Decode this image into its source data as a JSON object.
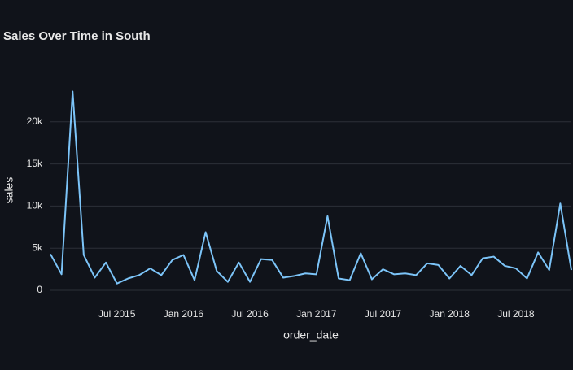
{
  "chart_data": {
    "type": "line",
    "title": "Sales Over Time in South",
    "x_label": "order_date",
    "y_label": "sales",
    "x": [
      "2015-01",
      "2015-02",
      "2015-03",
      "2015-04",
      "2015-05",
      "2015-06",
      "2015-07",
      "2015-08",
      "2015-09",
      "2015-10",
      "2015-11",
      "2015-12",
      "2016-01",
      "2016-02",
      "2016-03",
      "2016-04",
      "2016-05",
      "2016-06",
      "2016-07",
      "2016-08",
      "2016-09",
      "2016-10",
      "2016-11",
      "2016-12",
      "2017-01",
      "2017-02",
      "2017-03",
      "2017-04",
      "2017-05",
      "2017-06",
      "2017-07",
      "2017-08",
      "2017-09",
      "2017-10",
      "2017-11",
      "2017-12",
      "2018-01",
      "2018-02",
      "2018-03",
      "2018-04",
      "2018-05",
      "2018-06",
      "2018-07",
      "2018-08",
      "2018-09",
      "2018-10",
      "2018-11",
      "2018-12"
    ],
    "series": [
      {
        "name": "sales",
        "color": "#7cc4f8",
        "values": [
          4300,
          1900,
          23600,
          4200,
          1500,
          3300,
          800,
          1400,
          1800,
          2600,
          1800,
          3600,
          4200,
          1200,
          6900,
          2300,
          1000,
          3300,
          1000,
          3700,
          3600,
          1500,
          1700,
          2000,
          1900,
          8800,
          1400,
          1200,
          4400,
          1300,
          2500,
          1900,
          2000,
          1800,
          3200,
          3000,
          1400,
          2900,
          1800,
          3800,
          4000,
          2900,
          2600,
          1400,
          4500,
          2400,
          10300,
          2400
        ]
      }
    ],
    "xlim": [
      "2015-01",
      "2018-12"
    ],
    "xticks": [
      {
        "value": "2015-07",
        "label": "Jul 2015"
      },
      {
        "value": "2016-01",
        "label": "Jan 2016"
      },
      {
        "value": "2016-07",
        "label": "Jul 2016"
      },
      {
        "value": "2017-01",
        "label": "Jan 2017"
      },
      {
        "value": "2017-07",
        "label": "Jul 2017"
      },
      {
        "value": "2018-01",
        "label": "Jan 2018"
      },
      {
        "value": "2018-07",
        "label": "Jul 2018"
      }
    ],
    "ylim": [
      0,
      25000
    ],
    "yticks": [
      0,
      {
        "value": 5000,
        "label": "5k"
      },
      {
        "value": 10000,
        "label": "10k"
      },
      {
        "value": 15000,
        "label": "15k"
      },
      {
        "value": 20000,
        "label": "20k"
      }
    ],
    "grid": true
  }
}
